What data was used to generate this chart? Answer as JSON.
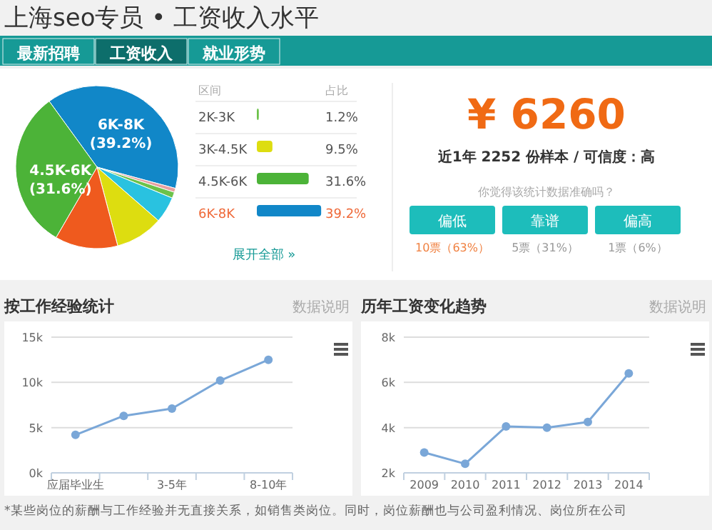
{
  "chart_data": [
    {
      "type": "pie",
      "title": "上海seo专员 • 工资收入水平",
      "categories": [
        "6K-8K",
        null,
        "2K-3K",
        null,
        "3K-4.5K",
        null,
        "4.5K-6K"
      ],
      "values": [
        39.2,
        0.8,
        1.2,
        5.2,
        9.5,
        12.5,
        31.6
      ],
      "colors": [
        "#1187c8",
        "#e8a0a0",
        "#6cc24a",
        "#29c2e0",
        "#dddd10",
        "#ef5a1e",
        "#4cb338"
      ],
      "value_labels": [
        "(39.2%)",
        null,
        null,
        null,
        null,
        null,
        "(31.6%)"
      ],
      "legend": "right",
      "annotations": [
        "最新招聘",
        "工资收入",
        "就业形势",
        "区间",
        "占比",
        "展开全部 »",
        "1.2%",
        "9.5%",
        "31.6%",
        "39.2%"
      ]
    },
    {
      "type": "other",
      "title": "¥ 6260",
      "annotations": [
        "近1年 2252 份样本 / 可信度：高",
        "你觉得该统计数据准确吗？",
        "偏低",
        "靠谱",
        "偏高",
        "10票（63%）",
        "5票（31%）",
        "1票（6%）"
      ]
    },
    {
      "type": "line",
      "title": "按工作经验统计",
      "categories": [
        "应届毕业生",
        null,
        "3-5年",
        null,
        "8-10年"
      ],
      "series": [
        {
          "color": "#7aa7d8",
          "values": [
            4200,
            6300,
            7100,
            10200,
            12500
          ]
        }
      ],
      "ylim": [
        0,
        15000
      ],
      "yticks": [
        {
          "value": 0,
          "label": "0k"
        },
        {
          "value": 5000,
          "label": "5k"
        },
        {
          "value": 10000,
          "label": "10k"
        },
        {
          "value": 15000,
          "label": "15k"
        }
      ],
      "grid": "y",
      "marker": "circle",
      "annotations": [
        "数据说明",
        "*某些岗位的薪酬与工作经验并无直接关系，如销售类岗位。同时，岗位薪酬也与公司盈利情况、岗位所在公司"
      ]
    },
    {
      "type": "line",
      "title": "历年工资变化趋势",
      "categories": [
        "2009",
        "2010",
        "2011",
        "2012",
        "2013",
        "2014"
      ],
      "series": [
        {
          "color": "#7aa7d8",
          "values": [
            2900,
            2400,
            4050,
            4000,
            4250,
            6400
          ]
        }
      ],
      "ylim": [
        2000,
        8000
      ],
      "yticks": [
        {
          "value": 2000,
          "label": "2k"
        },
        {
          "value": 4000,
          "label": "4k"
        },
        {
          "value": 6000,
          "label": "6k"
        },
        {
          "value": 8000,
          "label": "8k"
        }
      ],
      "grid": "y",
      "marker": "circle",
      "annotations": [
        "数据说明"
      ]
    }
  ]
}
